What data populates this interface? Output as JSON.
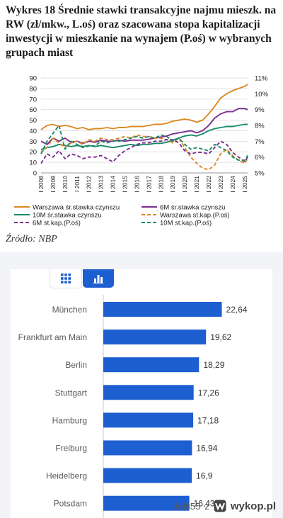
{
  "top_panel": {
    "title": "Wykres 18 Średnie stawki transakcyjne najmu mieszk. na RW (zł/mkw., L.oś) oraz szacowana stopa kapitalizacji inwestycji w mieszkanie na wynajem (P.oś) w wybranych grupach miast",
    "source": "Źródło: NBP"
  },
  "bottom_panel": {
    "toggles": [
      {
        "name": "table-view",
        "icon": "grid-icon",
        "active": false
      },
      {
        "name": "chart-view",
        "icon": "bar-chart-icon",
        "active": true
      }
    ]
  },
  "watermark": {
    "user": "del855",
    "separator": "z",
    "brand": "wykop.pl",
    "brand_icon": "wykop-logo-icon"
  },
  "colors": {
    "warszawa": "#dd8722",
    "m6": "#7a2f8e",
    "m10": "#1a8a6b",
    "bar": "#1d5fd1",
    "accent": "#1d5fd1"
  },
  "chart_data": [
    {
      "type": "line",
      "title": "Wykres 18 Średnie stawki transakcyjne najmu mieszk. na RW (zł/mkw., L.oś) oraz szacowana stopa kapitalizacji inwestycji w mieszkanie na wynajem (P.oś) w wybranych grupach miast",
      "x_ticks": [
        "I 2008",
        "I 2009",
        "I 2010",
        "I 2011",
        "I 2012",
        "I 2013",
        "I 2014",
        "I 2015",
        "I 2016",
        "I 2017",
        "I 2018",
        "I 2019",
        "I 2020",
        "I 2021",
        "I 2022",
        "I 2023",
        "I 2024",
        "I 2025"
      ],
      "x_range": [
        2008,
        2025.25
      ],
      "y_left": {
        "range": [
          0,
          90
        ],
        "ticks": [
          0,
          10,
          20,
          30,
          40,
          50,
          60,
          70,
          80,
          90
        ]
      },
      "y_right": {
        "range": [
          5,
          11
        ],
        "ticks": [
          "5%",
          "6%",
          "7%",
          "8%",
          "9%",
          "10%",
          "11%"
        ]
      },
      "grid": true,
      "legend_position": "bottom",
      "series": [
        {
          "name": "Warszawa śr.stawka czynszu",
          "axis": "left",
          "style": "solid",
          "color": "#dd8722",
          "x": [
            2008,
            2008.5,
            2009,
            2009.5,
            2010,
            2010.5,
            2011,
            2011.5,
            2012,
            2012.5,
            2013,
            2013.5,
            2014,
            2014.5,
            2015,
            2015.5,
            2016,
            2016.5,
            2017,
            2017.5,
            2018,
            2018.5,
            2019,
            2019.5,
            2020,
            2020.5,
            2021,
            2021.5,
            2022,
            2022.5,
            2023,
            2023.5,
            2024,
            2024.5,
            2025,
            2025.25
          ],
          "y": [
            41,
            45,
            46,
            44,
            45,
            44,
            42,
            43,
            41,
            42,
            42,
            43,
            42,
            43,
            43,
            44,
            44,
            44,
            45,
            46,
            46,
            47,
            49,
            50,
            51,
            50,
            48,
            50,
            56,
            63,
            71,
            75,
            78,
            80,
            82,
            84
          ]
        },
        {
          "name": "6M śr.stawka czynszu",
          "axis": "left",
          "style": "solid",
          "color": "#7a2f8e",
          "x": [
            2008,
            2008.5,
            2009,
            2009.5,
            2010,
            2010.5,
            2011,
            2011.5,
            2012,
            2012.5,
            2013,
            2013.5,
            2014,
            2014.5,
            2015,
            2015.5,
            2016,
            2016.5,
            2017,
            2017.5,
            2018,
            2018.5,
            2019,
            2019.5,
            2020,
            2020.5,
            2021,
            2021.5,
            2022,
            2022.5,
            2023,
            2023.5,
            2024,
            2024.5,
            2025,
            2025.25
          ],
          "y": [
            30,
            27,
            33,
            30,
            33,
            29,
            30,
            28,
            30,
            29,
            31,
            30,
            30,
            31,
            30,
            31,
            31,
            31,
            32,
            33,
            34,
            35,
            37,
            38,
            39,
            40,
            38,
            40,
            45,
            52,
            56,
            58,
            58,
            61,
            61,
            60
          ]
        },
        {
          "name": "10M śr.stawka czynszu",
          "axis": "left",
          "style": "solid",
          "color": "#1a8a6b",
          "x": [
            2008,
            2008.5,
            2009,
            2009.5,
            2010,
            2010.5,
            2011,
            2011.5,
            2012,
            2012.5,
            2013,
            2013.5,
            2014,
            2014.5,
            2015,
            2015.5,
            2016,
            2016.5,
            2017,
            2017.5,
            2018,
            2018.5,
            2019,
            2019.5,
            2020,
            2020.5,
            2021,
            2021.5,
            2022,
            2022.5,
            2023,
            2023.5,
            2024,
            2024.5,
            2025,
            2025.25
          ],
          "y": [
            22,
            24,
            25,
            27,
            26,
            25,
            26,
            25,
            26,
            25,
            26,
            25,
            24,
            25,
            26,
            27,
            26,
            27,
            27,
            28,
            28,
            29,
            31,
            33,
            35,
            36,
            35,
            37,
            40,
            42,
            43,
            44,
            44,
            45,
            46,
            46
          ]
        },
        {
          "name": "Warszawa st.kap.(P.oś)",
          "axis": "right",
          "style": "dashed",
          "color": "#dd8722",
          "x": [
            2008,
            2008.5,
            2009,
            2009.5,
            2010,
            2010.5,
            2011,
            2011.5,
            2012,
            2012.5,
            2013,
            2013.5,
            2014,
            2014.5,
            2015,
            2015.5,
            2016,
            2016.5,
            2017,
            2017.5,
            2018,
            2018.5,
            2019,
            2019.5,
            2020,
            2020.5,
            2021,
            2021.5,
            2022,
            2022.5,
            2023,
            2023.5,
            2024,
            2024.5,
            2025,
            2025.25
          ],
          "y": [
            6.3,
            6.6,
            7.2,
            6.9,
            6.6,
            6.9,
            7.0,
            6.8,
            7.1,
            7.0,
            7.2,
            7.1,
            7.1,
            7.2,
            7.3,
            7.2,
            7.4,
            7.3,
            7.3,
            7.2,
            7.2,
            7.1,
            6.9,
            7.2,
            6.6,
            6.0,
            5.6,
            5.3,
            5.2,
            5.5,
            6.2,
            6.5,
            6.1,
            5.8,
            5.6,
            5.9
          ]
        },
        {
          "name": "6M st.kap.(P.oś)",
          "axis": "right",
          "style": "dashed",
          "color": "#7a2f8e",
          "x": [
            2008,
            2008.5,
            2009,
            2009.5,
            2010,
            2010.5,
            2011,
            2011.5,
            2012,
            2012.5,
            2013,
            2013.5,
            2014,
            2014.5,
            2015,
            2015.5,
            2016,
            2016.5,
            2017,
            2017.5,
            2018,
            2018.5,
            2019,
            2019.5,
            2020,
            2020.5,
            2021,
            2021.5,
            2022,
            2022.5,
            2023,
            2023.5,
            2024,
            2024.5,
            2025,
            2025.25
          ],
          "y": [
            5.6,
            6.2,
            6.0,
            6.4,
            5.9,
            6.2,
            6.1,
            5.9,
            6.0,
            6.0,
            6.1,
            5.9,
            5.7,
            6.1,
            6.4,
            6.6,
            6.8,
            6.9,
            6.9,
            7.0,
            7.0,
            7.1,
            7.1,
            6.9,
            6.4,
            6.2,
            6.3,
            6.3,
            6.2,
            6.6,
            7.0,
            6.8,
            6.3,
            6.0,
            5.7,
            6.0
          ]
        },
        {
          "name": "10M st.kap.(P.oś)",
          "axis": "right",
          "style": "dashed",
          "color": "#1a8a6b",
          "x": [
            2008,
            2008.5,
            2009,
            2009.5,
            2010,
            2010.5,
            2011,
            2011.5,
            2012,
            2012.5,
            2013,
            2013.5,
            2014,
            2014.5,
            2015,
            2015.5,
            2016,
            2016.5,
            2017,
            2017.5,
            2018,
            2018.5,
            2019,
            2019.5,
            2020,
            2020.5,
            2021,
            2021.5,
            2022,
            2022.5,
            2023,
            2023.5,
            2024,
            2024.5,
            2025,
            2025.25
          ],
          "y": [
            6.2,
            7.0,
            7.5,
            8.0,
            6.5,
            7.0,
            6.8,
            6.6,
            6.7,
            6.7,
            7.0,
            6.9,
            7.0,
            7.0,
            7.1,
            7.2,
            7.3,
            7.2,
            7.3,
            7.2,
            7.4,
            7.3,
            7.0,
            7.2,
            6.8,
            6.5,
            6.6,
            6.5,
            6.4,
            6.8,
            6.6,
            6.4,
            6.0,
            5.8,
            5.8,
            6.1
          ]
        }
      ]
    },
    {
      "type": "bar",
      "orientation": "horizontal",
      "categories": [
        "München",
        "Frankfurt am Main",
        "Berlin",
        "Stuttgart",
        "Hamburg",
        "Freiburg",
        "Heidelberg",
        "Potsdam"
      ],
      "values": [
        22.64,
        19.62,
        18.29,
        17.26,
        17.18,
        16.94,
        16.9,
        16.43
      ],
      "labels": [
        "22,64",
        "19,62",
        "18,29",
        "17,26",
        "17,18",
        "16,94",
        "16,9",
        "16,43"
      ],
      "x_range": [
        0,
        30
      ]
    }
  ]
}
